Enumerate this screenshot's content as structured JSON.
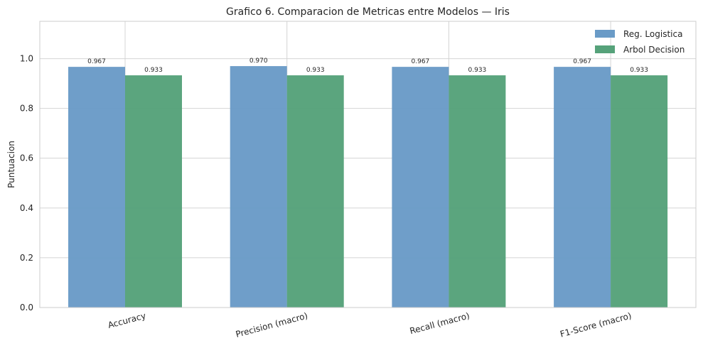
{
  "chart_data": {
    "type": "bar",
    "title": "Grafico 6. Comparacion de Metricas entre Modelos — Iris",
    "xlabel": "",
    "ylabel": "Puntuacion",
    "categories": [
      "Accuracy",
      "Precision (macro)",
      "Recall (macro)",
      "F1-Score (macro)"
    ],
    "series": [
      {
        "name": "Reg. Logistica",
        "values": [
          0.967,
          0.97,
          0.967,
          0.967
        ],
        "labels": [
          "0.967",
          "0.970",
          "0.967",
          "0.967"
        ],
        "color": "#6a9bc7"
      },
      {
        "name": "Arbol Decision",
        "values": [
          0.933,
          0.933,
          0.933,
          0.933
        ],
        "labels": [
          "0.933",
          "0.933",
          "0.933",
          "0.933"
        ],
        "color": "#56a27a"
      }
    ],
    "ylim": [
      0,
      1.15
    ],
    "yticks": [
      "0.0",
      "0.2",
      "0.4",
      "0.6",
      "0.8",
      "1.0"
    ],
    "grid": true,
    "legend_position": "top-right"
  }
}
